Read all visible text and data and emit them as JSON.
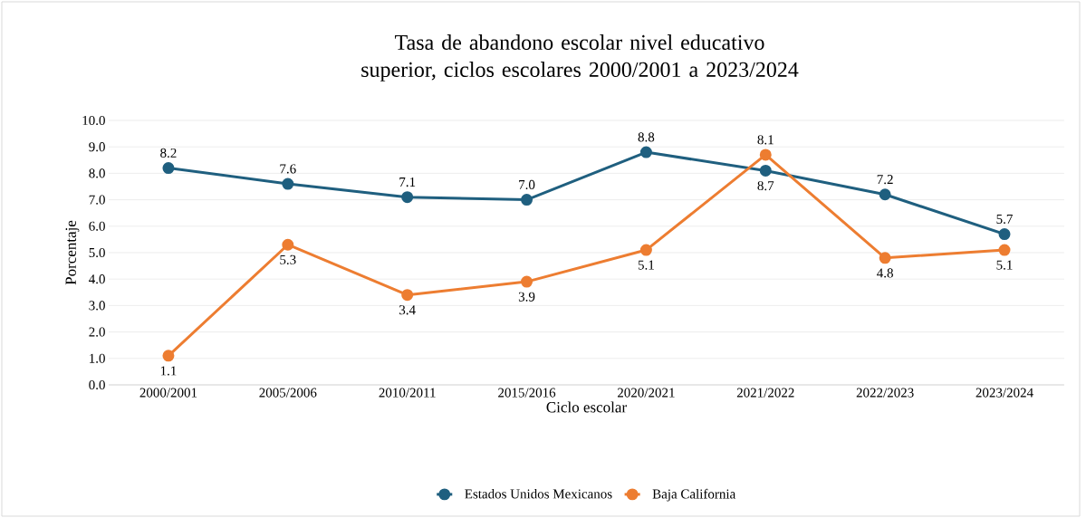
{
  "chart_data": {
    "type": "line",
    "title": "Tasa de abandono escolar nivel educativo superior, ciclos escolares 2000/2001 a 2023/2024",
    "xlabel": "Ciclo escolar",
    "ylabel": "Porcentaje",
    "categories": [
      "2000/2001",
      "2005/2006",
      "2010/2011",
      "2015/2016",
      "2020/2021",
      "2021/2022",
      "2022/2023",
      "2023/2024"
    ],
    "series": [
      {
        "name": "Estados Unidos Mexicanos",
        "color": "#1f5f7f",
        "values": [
          8.2,
          7.6,
          7.1,
          7.0,
          8.8,
          8.1,
          7.2,
          5.7
        ],
        "value_labels": [
          "8.2",
          "7.6",
          "7.1",
          "7.0",
          "8.8",
          "8.1",
          "7.2",
          "5.7"
        ]
      },
      {
        "name": "Baja California",
        "color": "#ed7d31",
        "values": [
          1.1,
          5.3,
          3.4,
          3.9,
          5.1,
          8.7,
          4.8,
          5.1
        ],
        "value_labels": [
          "1.1",
          "5.3",
          "3.4",
          "3.9",
          "5.1",
          "8.7",
          "4.8",
          "5.1"
        ]
      }
    ],
    "ylim": [
      0,
      10
    ],
    "yticks": [
      {
        "value": 0,
        "label": "0.0"
      },
      {
        "value": 1,
        "label": "1.0"
      },
      {
        "value": 2,
        "label": "2.0"
      },
      {
        "value": 3,
        "label": "3.0"
      },
      {
        "value": 4,
        "label": "4.0"
      },
      {
        "value": 5,
        "label": "5.0"
      },
      {
        "value": 6,
        "label": "6.0"
      },
      {
        "value": 7,
        "label": "7.0"
      },
      {
        "value": 8,
        "label": "8.0"
      },
      {
        "value": 9,
        "label": "9.0"
      },
      {
        "value": 10,
        "label": "10.0"
      }
    ],
    "grid": "y",
    "legend": "bottom",
    "marker": "circle",
    "line_style": "solid"
  }
}
